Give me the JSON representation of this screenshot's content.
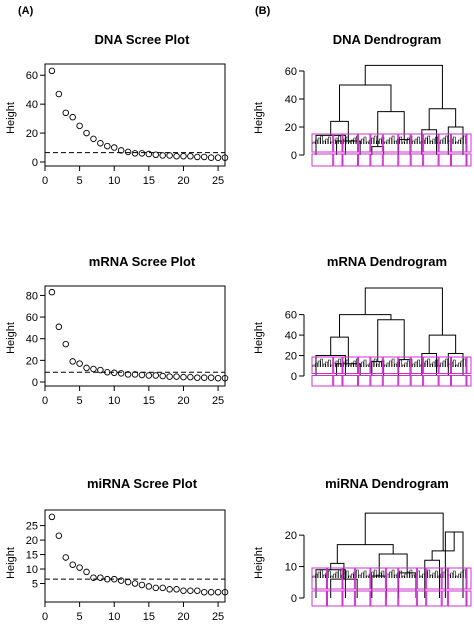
{
  "panel_labels": [
    "(A)",
    "(B)"
  ],
  "chart_data": [
    {
      "type": "scatter",
      "title": "DNA Scree Plot",
      "ylabel": "Height",
      "xlabel": "",
      "xlim": [
        0,
        26
      ],
      "ylim": [
        0,
        65
      ],
      "x_ticks": [
        0,
        5,
        10,
        15,
        20,
        25
      ],
      "y_ticks": [
        0,
        20,
        40,
        60
      ],
      "threshold": 6.5,
      "x": [
        1,
        2,
        3,
        4,
        5,
        6,
        7,
        8,
        9,
        10,
        11,
        12,
        13,
        14,
        15,
        16,
        17,
        18,
        19,
        20,
        21,
        22,
        23,
        24,
        25,
        26
      ],
      "y": [
        63,
        47,
        34,
        31,
        25,
        20,
        16,
        13,
        11,
        10,
        8,
        7,
        6,
        6,
        5.5,
        5,
        4.5,
        4.5,
        4,
        4,
        4,
        3.5,
        3.5,
        3,
        3,
        3
      ]
    },
    {
      "type": "scatter",
      "title": "mRNA Scree Plot",
      "ylabel": "Height",
      "xlabel": "",
      "xlim": [
        0,
        26
      ],
      "ylim": [
        0,
        85
      ],
      "x_ticks": [
        0,
        5,
        10,
        15,
        20,
        25
      ],
      "y_ticks": [
        0,
        20,
        40,
        60,
        80
      ],
      "threshold": 9,
      "x": [
        1,
        2,
        3,
        4,
        5,
        6,
        7,
        8,
        9,
        10,
        11,
        12,
        13,
        14,
        15,
        16,
        17,
        18,
        19,
        20,
        21,
        22,
        23,
        24,
        25,
        26
      ],
      "y": [
        83,
        51,
        35,
        19,
        17,
        13,
        12,
        11,
        9,
        8.5,
        8,
        7,
        7,
        6.5,
        6,
        6,
        5.5,
        5,
        5,
        4.5,
        4.5,
        4,
        4,
        4,
        3.5,
        3.5
      ]
    },
    {
      "type": "scatter",
      "title": "miRNA Scree Plot",
      "ylabel": "Height",
      "xlabel": "",
      "xlim": [
        0,
        26
      ],
      "ylim": [
        0,
        29
      ],
      "x_ticks": [
        0,
        5,
        10,
        15,
        20,
        25
      ],
      "y_ticks": [
        5,
        10,
        15,
        20,
        25
      ],
      "threshold": 6.5,
      "x": [
        1,
        2,
        3,
        4,
        5,
        6,
        7,
        8,
        9,
        10,
        11,
        12,
        13,
        14,
        15,
        16,
        17,
        18,
        19,
        20,
        21,
        22,
        23,
        24,
        25,
        26
      ],
      "y": [
        28,
        21.5,
        14,
        11.5,
        10.5,
        9,
        7,
        7,
        6.5,
        6.5,
        6,
        5.5,
        5,
        4.5,
        4,
        3.5,
        3.5,
        3,
        3,
        2.5,
        2.5,
        2.5,
        2,
        2,
        2,
        2
      ]
    },
    {
      "type": "dendrogram",
      "title": "DNA Dendrogram",
      "ylabel": "Height",
      "xlabel": "",
      "ylim": [
        0,
        65
      ],
      "y_ticks": [
        0,
        20,
        40,
        60
      ],
      "cluster_count": 12,
      "cluster_box_color": "#cc33cc",
      "links": [
        {
          "left": 0,
          "right": 2,
          "height": 14
        },
        {
          "left": 1,
          "right": 3,
          "height": 10
        },
        {
          "left": 4,
          "right": 5,
          "height": 6
        },
        {
          "left": 6,
          "right": 7,
          "height": 11
        },
        {
          "left": 8,
          "right": 9,
          "height": 18
        },
        {
          "left": 10,
          "right": 11,
          "height": 20
        },
        {
          "left": 12,
          "right": 13,
          "height": 24
        },
        {
          "left": 14,
          "right": 15,
          "height": 31
        },
        {
          "left": 16,
          "right": 17,
          "height": 33
        },
        {
          "left": 18,
          "right": 19,
          "height": 50
        },
        {
          "left": 20,
          "right": 21,
          "height": 64
        }
      ]
    },
    {
      "type": "dendrogram",
      "title": "mRNA Dendrogram",
      "ylabel": "Height",
      "xlabel": "",
      "ylim": [
        0,
        88
      ],
      "y_ticks": [
        0,
        20,
        40,
        60
      ],
      "cluster_count": 12,
      "cluster_box_color": "#cc33cc",
      "links": [
        {
          "left": 0,
          "right": 2,
          "height": 20
        },
        {
          "left": 1,
          "right": 3,
          "height": 12
        },
        {
          "left": 4,
          "right": 5,
          "height": 14
        },
        {
          "left": 6,
          "right": 7,
          "height": 16
        },
        {
          "left": 8,
          "right": 9,
          "height": 22
        },
        {
          "left": 10,
          "right": 11,
          "height": 22
        },
        {
          "left": 12,
          "right": 13,
          "height": 38
        },
        {
          "left": 14,
          "right": 15,
          "height": 55
        },
        {
          "left": 16,
          "right": 17,
          "height": 40
        },
        {
          "left": 18,
          "right": 19,
          "height": 60
        },
        {
          "left": 20,
          "right": 21,
          "height": 86
        }
      ]
    },
    {
      "type": "dendrogram",
      "title": "miRNA Dendrogram",
      "ylabel": "Height",
      "xlabel": "",
      "ylim": [
        0,
        28
      ],
      "y_ticks": [
        0,
        10,
        20
      ],
      "cluster_count": 12,
      "cluster_box_color": "#cc33cc",
      "links": [
        {
          "left": 0,
          "right": 2,
          "height": 9
        },
        {
          "left": 1,
          "right": 3,
          "height": 6
        },
        {
          "left": 4,
          "right": 5,
          "height": 7
        },
        {
          "left": 6,
          "right": 7,
          "height": 8
        },
        {
          "left": 8,
          "right": 9,
          "height": 12
        },
        {
          "left": 10,
          "right": 11,
          "height": 21
        },
        {
          "left": 12,
          "right": 13,
          "height": 11
        },
        {
          "left": 14,
          "right": 15,
          "height": 14
        },
        {
          "left": 16,
          "right": 17,
          "height": 15
        },
        {
          "left": 18,
          "right": 19,
          "height": 17
        },
        {
          "left": 20,
          "right": 21,
          "height": 27
        }
      ]
    }
  ]
}
